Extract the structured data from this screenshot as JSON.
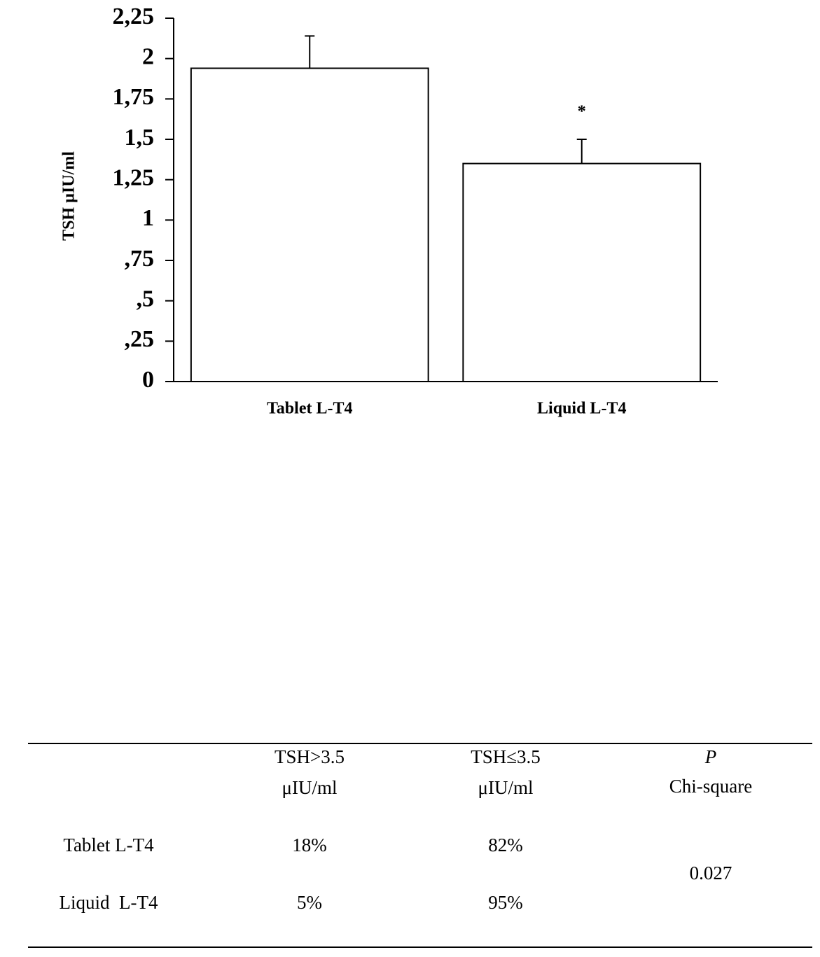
{
  "chart_data": {
    "type": "bar",
    "ylabel": "TSH µIU/ml",
    "categories": [
      "Tablet L-T4",
      "Liquid L-T4"
    ],
    "values": [
      1.94,
      1.35
    ],
    "errors": [
      0.2,
      0.15
    ],
    "color": "#ffffff",
    "annotation": "*",
    "ylim": [
      0,
      2.25
    ],
    "yticks": [
      0,
      {
        "value": 0.25,
        "label": ",25"
      },
      {
        "value": 0.5,
        "label": ",5"
      },
      {
        "value": 0.75,
        "label": ",75"
      },
      1,
      {
        "value": 1.25,
        "label": "1,25"
      },
      {
        "value": 1.5,
        "label": "1,5"
      },
      {
        "value": 1.75,
        "label": "1,75"
      },
      2,
      {
        "value": 2.25,
        "label": "2,25"
      }
    ]
  },
  "table": {
    "columns": [
      [
        "TSH>3.5",
        "μIU/ml"
      ],
      [
        "TSH≤3.5",
        "μIU/ml"
      ],
      [
        "P",
        "Chi-square"
      ]
    ],
    "rows": [
      [
        "Tablet L-T4",
        "18%",
        "82%"
      ],
      [
        "Liquid  L-T4",
        "5%",
        "95%"
      ]
    ],
    "p_value": "0.027"
  }
}
